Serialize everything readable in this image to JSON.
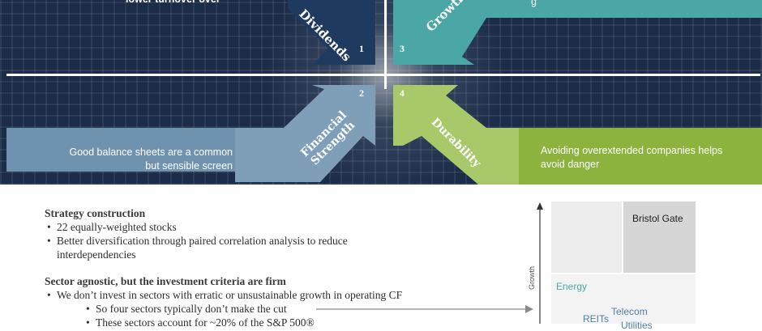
{
  "hero": {
    "top_left_text": "lower turnover over",
    "quadrants": [
      {
        "number": "1",
        "label": "Dividends"
      },
      {
        "number": "2",
        "label": "Financial Strength",
        "label_line1": "Financial",
        "label_line2": "Strength",
        "description": "Good balance sheets are  a common but sensible screen",
        "desc_line1": "Good balance sheets are  a common",
        "desc_line2": "but sensible screen"
      },
      {
        "number": "3",
        "label": "Growth",
        "description_partial": "g"
      },
      {
        "number": "4",
        "label": "Durability",
        "description": "Avoiding overextended companies helps avoid danger",
        "desc_line1": "Avoiding overextended companies helps",
        "desc_line2": "avoid danger"
      }
    ],
    "colors": {
      "navy": "#1b2c48",
      "dark_blue": "#1e3a5f",
      "steel_blue": "#6f93ae",
      "teal": "#4aa7a5",
      "green": "#8cb33e",
      "light_green": "#a9c86a"
    }
  },
  "strategy": {
    "heading": "Strategy construction",
    "bullets": [
      "22 equally-weighted stocks",
      "Better diversification through paired correlation analysis to reduce",
      "interdependencies"
    ]
  },
  "sector": {
    "heading": "Sector agnostic, but the investment criteria are firm",
    "bullet": "We don’t invest in sectors with erratic or unsustainable growth in operating CF",
    "sub_bullets": [
      "So four sectors typically don’t make the cut",
      "These sectors account for ~20% of the S&P 500®"
    ]
  },
  "matrix": {
    "axis_label": "Growth",
    "cells": {
      "top_right": "Bristol Gate",
      "energy": "Energy",
      "telecom": "Telecom",
      "reits": "REITs",
      "utilities_partial": "Utilities"
    }
  }
}
